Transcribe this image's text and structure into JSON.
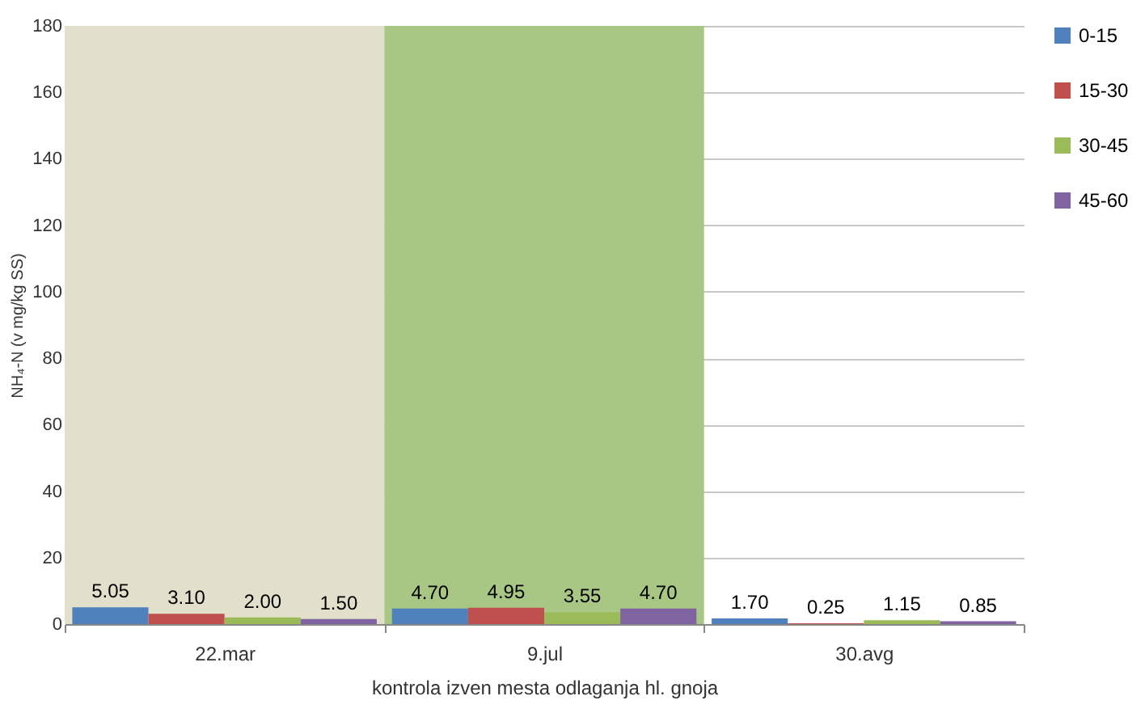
{
  "chart_data": {
    "type": "bar",
    "xlabel": "kontrola izven mesta odlaganja hl. gnoja",
    "ylabel": "NH₄-N (v mg/kg SS)",
    "categories": [
      "22.mar",
      "9.jul",
      "30.avg"
    ],
    "series": [
      {
        "name": "0-15",
        "color": "#4f81bd",
        "values": [
          5.05,
          4.7,
          1.7
        ],
        "value_labels": [
          "5.05",
          "4.70",
          "1.70"
        ]
      },
      {
        "name": "15-30",
        "color": "#c0504d",
        "values": [
          3.1,
          4.95,
          0.25
        ],
        "value_labels": [
          "3.10",
          "4.95",
          "0.25"
        ]
      },
      {
        "name": "30-45",
        "color": "#9bbb59",
        "values": [
          2.0,
          3.55,
          1.15
        ],
        "value_labels": [
          "2.00",
          "3.55",
          "1.15"
        ]
      },
      {
        "name": "45-60",
        "color": "#8064a2",
        "values": [
          1.5,
          4.7,
          0.85
        ],
        "value_labels": [
          "1.50",
          "4.70",
          "0.85"
        ]
      }
    ],
    "ylim": [
      0,
      180
    ],
    "yticks": [
      0,
      20,
      40,
      60,
      80,
      100,
      120,
      140,
      160,
      180
    ],
    "grid": "y",
    "legend": "right",
    "bands": [
      {
        "axis": "x",
        "from": "22.mar",
        "to": "22.mar",
        "color": "#e2dfcb"
      },
      {
        "axis": "x",
        "from": "9.jul",
        "to": "9.jul",
        "color": "#a9c784"
      }
    ]
  }
}
